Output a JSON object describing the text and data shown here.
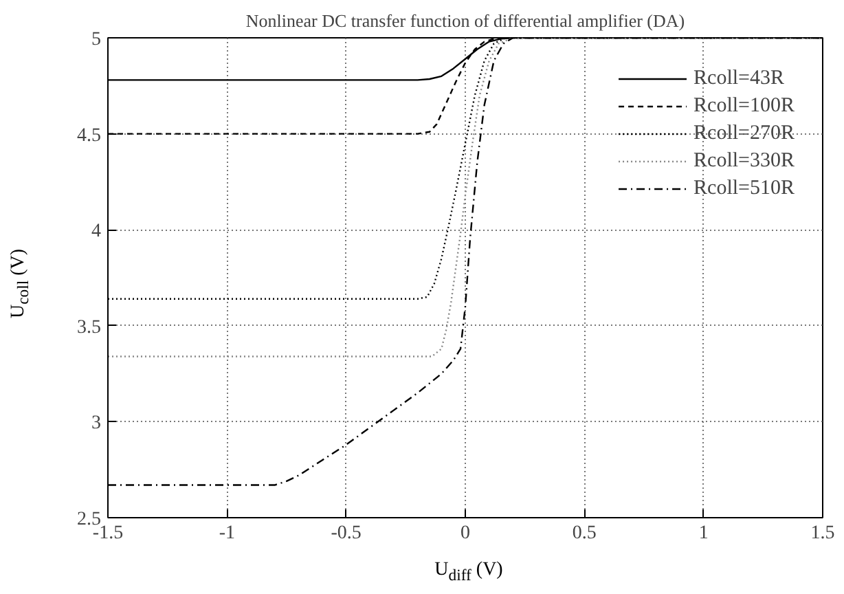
{
  "chart_data": {
    "type": "line",
    "title": "Nonlinear DC transfer function of differential amplifier (DA)",
    "xlabel": "U$_{diff}$ (V)",
    "ylabel": "U$_{coll}$ (V)",
    "xlim": [
      -1.5,
      1.5
    ],
    "ylim": [
      2.5,
      5
    ],
    "xticks": [
      -1.5,
      -1,
      -0.5,
      0,
      0.5,
      1,
      1.5
    ],
    "yticks": [
      2.5,
      3,
      3.5,
      4,
      4.5,
      5
    ],
    "grid": true,
    "legend": "top right",
    "marker": "none",
    "series": [
      {
        "name": "Rcoll=43R",
        "color": "#000000",
        "line_style": "solid",
        "x": [
          -1.5,
          -0.2,
          -0.15,
          -0.1,
          -0.05,
          0,
          0.05,
          0.1,
          0.15,
          0.2,
          1.5
        ],
        "values": [
          4.78,
          4.78,
          4.785,
          4.8,
          4.84,
          4.89,
          4.94,
          4.98,
          4.995,
          5,
          5
        ]
      },
      {
        "name": "Rcoll=100R",
        "color": "#000000",
        "line_style": "dashed",
        "x": [
          -1.5,
          -0.2,
          -0.15,
          -0.12,
          -0.08,
          -0.04,
          0,
          0.04,
          0.08,
          0.12,
          0.16,
          0.2,
          1.5
        ],
        "values": [
          4.5,
          4.5,
          4.51,
          4.55,
          4.66,
          4.77,
          4.87,
          4.94,
          4.98,
          4.995,
          5,
          5,
          5
        ]
      },
      {
        "name": "Rcoll=270R",
        "color": "#000000",
        "line_style": "dotted",
        "x": [
          -1.5,
          -0.2,
          -0.16,
          -0.13,
          -0.1,
          -0.07,
          -0.04,
          0,
          0.04,
          0.08,
          0.12,
          0.17,
          0.22,
          1.5
        ],
        "values": [
          3.64,
          3.64,
          3.65,
          3.72,
          3.85,
          4.02,
          4.2,
          4.45,
          4.7,
          4.88,
          4.97,
          5,
          5,
          5
        ]
      },
      {
        "name": "Rcoll=330R",
        "color": "#888888",
        "line_style": "dotted",
        "x": [
          -1.5,
          -0.14,
          -0.1,
          -0.08,
          -0.06,
          -0.04,
          -0.02,
          0,
          0.03,
          0.06,
          0.1,
          0.14,
          0.2,
          0.25,
          1.5
        ],
        "values": [
          3.34,
          3.34,
          3.38,
          3.48,
          3.62,
          3.8,
          3.98,
          4.18,
          4.45,
          4.7,
          4.88,
          4.97,
          5,
          5,
          5
        ]
      },
      {
        "name": "Rcoll=510R",
        "color": "#000000",
        "line_style": "dashdot",
        "x": [
          -1.5,
          -0.8,
          -0.75,
          -0.7,
          -0.6,
          -0.5,
          -0.4,
          -0.3,
          -0.2,
          -0.1,
          -0.05,
          -0.02,
          0,
          0.02,
          0.05,
          0.08,
          0.12,
          0.16,
          0.2,
          0.25,
          1.5
        ],
        "values": [
          2.67,
          2.67,
          2.69,
          2.72,
          2.8,
          2.88,
          2.97,
          3.06,
          3.15,
          3.25,
          3.32,
          3.38,
          3.6,
          3.95,
          4.35,
          4.65,
          4.88,
          4.97,
          5,
          5,
          5
        ]
      }
    ]
  }
}
